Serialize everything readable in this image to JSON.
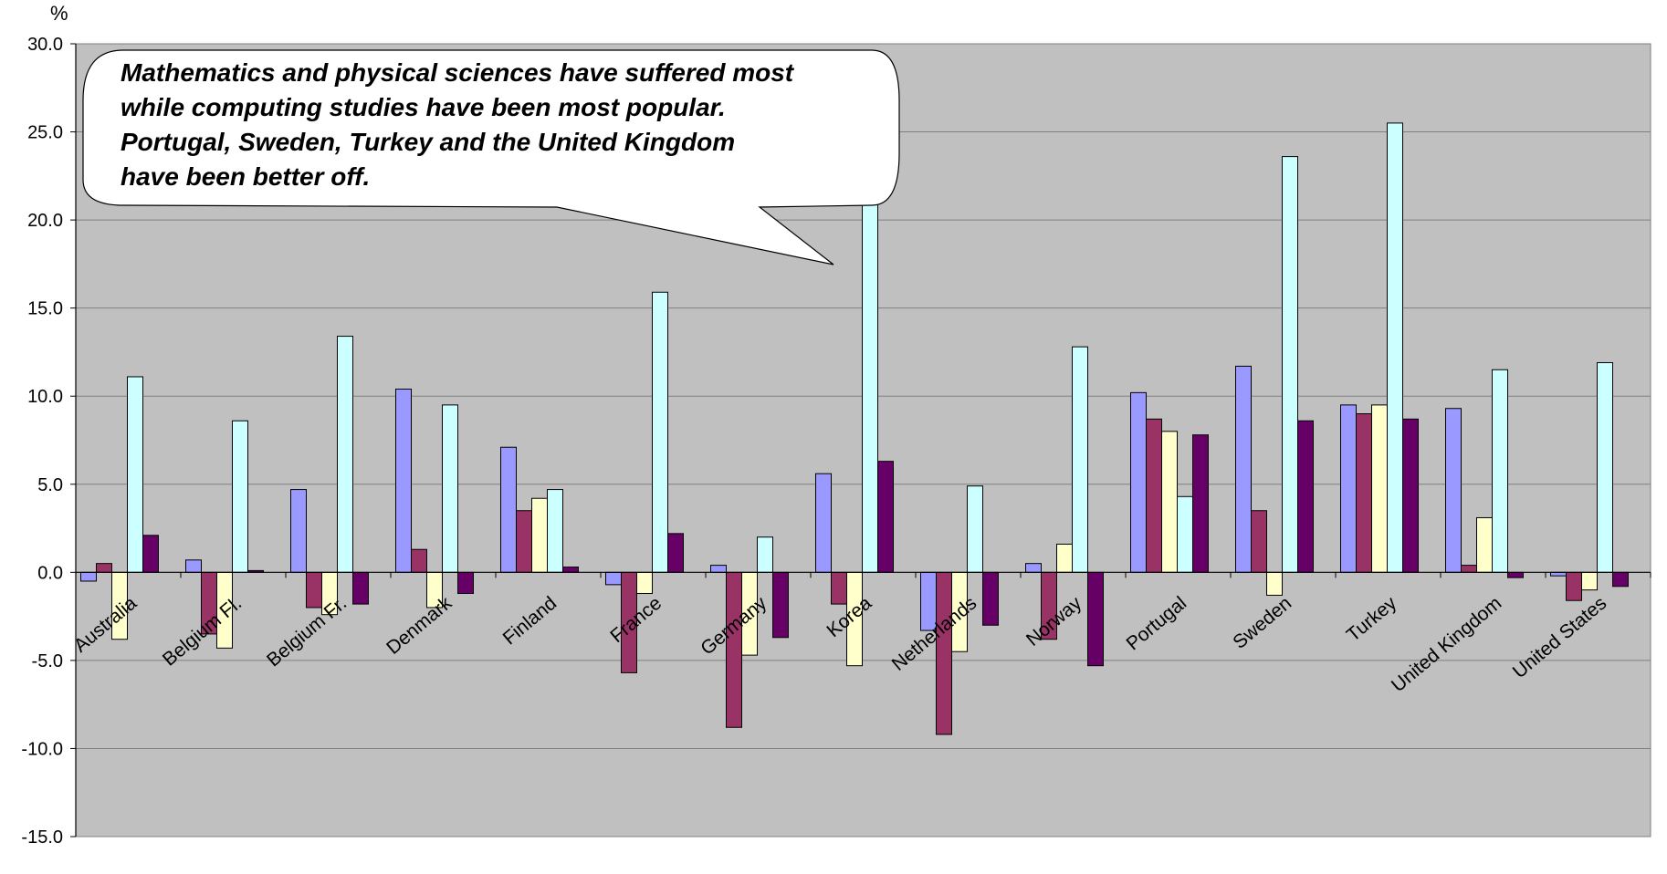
{
  "chart_data": {
    "type": "bar",
    "ylabel": "%",
    "ylim": [
      -15,
      30
    ],
    "yticks": [
      "30.0",
      "25.0",
      "20.0",
      "15.0",
      "10.0",
      "5.0",
      "0.0",
      "-5.0",
      "-10.0",
      "-15.0"
    ],
    "grid": true,
    "categories": [
      "Australia",
      "Belgium Fl.",
      "Belgium Fr.",
      "Denmark",
      "Finland",
      "France",
      "Germany",
      "Korea",
      "Netherlands",
      "Norway",
      "Portugal",
      "Sweden",
      "Turkey",
      "United Kingdom",
      "United States"
    ],
    "series": [
      {
        "color": "#9999ff",
        "values": [
          -0.5,
          0.7,
          4.7,
          10.4,
          7.1,
          -0.7,
          0.4,
          5.6,
          -3.3,
          0.5,
          10.2,
          11.7,
          9.5,
          9.3,
          -0.2
        ]
      },
      {
        "color": "#993366",
        "values": [
          0.5,
          -3.5,
          -2.0,
          1.3,
          3.5,
          -5.7,
          -8.8,
          -1.8,
          -9.2,
          -3.8,
          8.7,
          3.5,
          9.0,
          0.4,
          -1.6
        ]
      },
      {
        "color": "#ffffcc",
        "values": [
          -3.8,
          -4.3,
          -2.4,
          -2.0,
          4.2,
          -1.2,
          -4.7,
          -5.3,
          -4.5,
          1.6,
          8.0,
          -1.3,
          9.5,
          3.1,
          -1.0
        ]
      },
      {
        "color": "#ccffff",
        "values": [
          11.1,
          8.6,
          13.4,
          9.5,
          4.7,
          15.9,
          2.0,
          24.0,
          4.9,
          12.8,
          4.3,
          23.6,
          25.5,
          11.5,
          11.9
        ]
      },
      {
        "color": "#660066",
        "values": [
          2.1,
          0.1,
          -1.8,
          -1.2,
          0.3,
          2.2,
          -3.7,
          6.3,
          -3.0,
          -5.3,
          7.8,
          8.6,
          8.7,
          -0.3,
          -0.8
        ]
      }
    ],
    "callout": {
      "lines": [
        "Mathematics and physical sciences have suffered most",
        "while computing studies have been most popular.",
        "Portugal, Sweden, Turkey and the United Kingdom",
        "have been better off."
      ]
    }
  },
  "colors": {
    "plot_background": "#c0c0c0",
    "gridline": "#808080",
    "callout_fill": "#ffffff",
    "axis": "#000000"
  }
}
